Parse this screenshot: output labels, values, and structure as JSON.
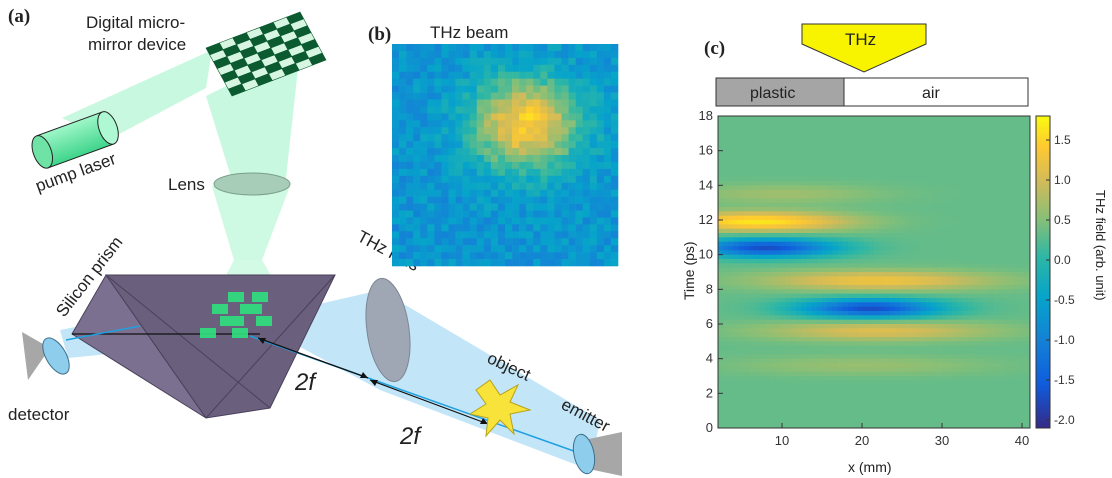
{
  "panel_a": {
    "tag": "(a)",
    "dmd_label_line1": "Digital micro-",
    "dmd_label_line2": "mirror device",
    "pump_laser": "pump laser",
    "lens": "Lens",
    "silicon_prism": "Silicon prism",
    "thz_lens": "THz lens",
    "object": "object",
    "emitter": "emitter",
    "detector": "detector",
    "two_f_1": "2f",
    "two_f_2": "2f"
  },
  "panel_b": {
    "tag": "(b)",
    "title": "THz beam"
  },
  "panel_c": {
    "tag": "(c)",
    "thz_marker": "THz",
    "material_plastic": "plastic",
    "material_air": "air",
    "chart_data": {
      "type": "heatmap",
      "xlabel": "x (mm)",
      "ylabel": "Time (ps)",
      "xticks": [
        10,
        20,
        30,
        40
      ],
      "yticks": [
        0,
        2,
        4,
        6,
        8,
        10,
        12,
        14,
        16,
        18
      ],
      "xlim": [
        2,
        41
      ],
      "ylim": [
        0,
        18
      ],
      "colorbar": {
        "label": "THz field (arb. unit)",
        "ticks": [
          1.5,
          1.0,
          0.5,
          0.0,
          -0.5,
          -1.0,
          -1.5,
          -2.0
        ],
        "tick_labels": [
          "1.5",
          "1.0",
          "0.5",
          "0.0",
          "-0.5",
          "-1.0",
          "-1.5",
          "-2.0"
        ],
        "range": [
          -2.1,
          1.8
        ]
      },
      "colormap": [
        "#352a87",
        "#0f5cdd",
        "#1481d6",
        "#06a4ca",
        "#2eb7a4",
        "#87bf77",
        "#d1bb59",
        "#fec832",
        "#f9fb0e"
      ]
    }
  }
}
